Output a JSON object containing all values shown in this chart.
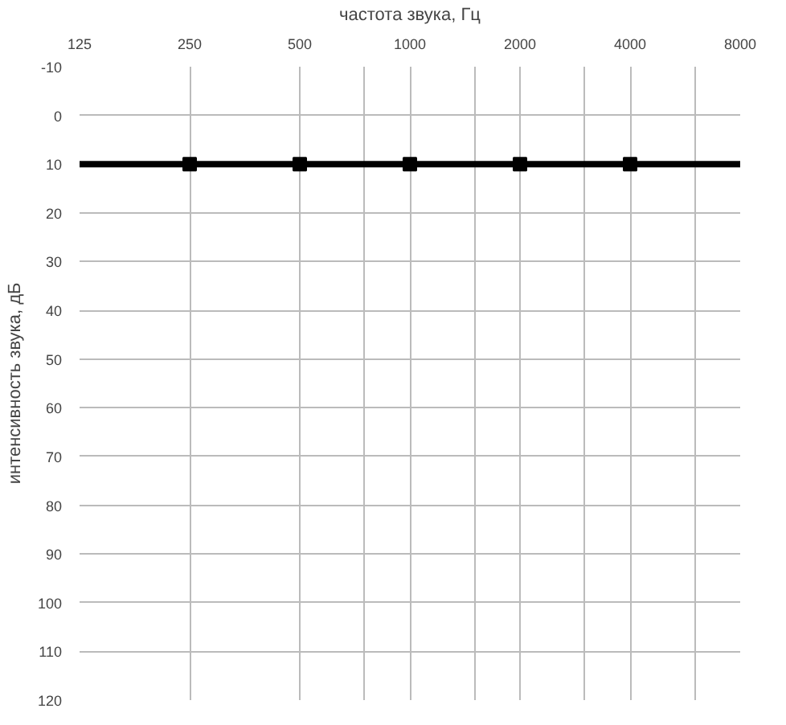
{
  "chart_data": {
    "type": "line",
    "xlabel": "частота звука, Гц",
    "ylabel": "интенсивность звука, дБ",
    "log": "x",
    "grid": true,
    "xlim": [
      125,
      8000
    ],
    "xticks": [
      125,
      250,
      500,
      {
        "value": 750,
        "label": null
      },
      1000,
      {
        "value": 1500,
        "label": null
      },
      2000,
      {
        "value": 3000,
        "label": null
      },
      4000,
      {
        "value": 6000,
        "label": null
      },
      8000
    ],
    "ylim": [
      120,
      -10
    ],
    "yticks": [
      -10,
      0,
      10,
      20,
      30,
      40,
      50,
      60,
      70,
      80,
      90,
      100,
      110,
      120
    ],
    "series": [
      {
        "color": "#000000",
        "marker": "none",
        "x": [
          125,
          8000
        ],
        "values": [
          10,
          10
        ]
      },
      {
        "type": "scatter",
        "color": "#000000",
        "marker": "square",
        "x": [
          250,
          500,
          1000,
          2000,
          4000
        ],
        "values": [
          10,
          10,
          10,
          10,
          10
        ]
      }
    ]
  }
}
